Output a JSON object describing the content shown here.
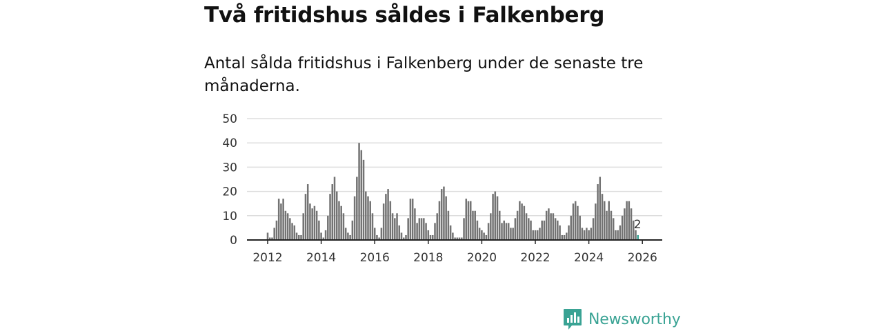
{
  "header": {
    "title": "Två fritidshus såldes i Falkenberg",
    "subtitle": "Antal sålda fritidshus i Falkenberg under de senaste tre månaderna."
  },
  "brand": {
    "name": "Newsworthy",
    "icon": "newsworthy-logo-icon",
    "color": "#3aa394"
  },
  "colors": {
    "bar": "#737373",
    "highlight": "#3aa394",
    "grid": "#dddddd",
    "axis": "#222222"
  },
  "chart_data": {
    "type": "bar",
    "start": "2012-01",
    "frequency": "monthly",
    "ylim": [
      0,
      50
    ],
    "yticks": [
      0,
      10,
      20,
      30,
      40,
      50
    ],
    "xticks": [
      "2012",
      "2014",
      "2016",
      "2018",
      "2020",
      "2022",
      "2024",
      "2026"
    ],
    "grid": true,
    "values": [
      3,
      1,
      1,
      5,
      8,
      17,
      15,
      17,
      12,
      11,
      9,
      7,
      6,
      3,
      2,
      2,
      11,
      19,
      23,
      15,
      13,
      14,
      12,
      8,
      3,
      1,
      4,
      10,
      19,
      23,
      26,
      20,
      16,
      14,
      11,
      5,
      3,
      2,
      8,
      18,
      26,
      40,
      37,
      33,
      20,
      18,
      16,
      11,
      5,
      2,
      1,
      5,
      15,
      19,
      21,
      16,
      11,
      9,
      11,
      6,
      3,
      1,
      2,
      9,
      17,
      17,
      13,
      7,
      9,
      9,
      9,
      7,
      4,
      2,
      2,
      7,
      11,
      16,
      21,
      22,
      18,
      12,
      6,
      3,
      1,
      1,
      1,
      1,
      9,
      17,
      16,
      16,
      12,
      12,
      8,
      5,
      4,
      3,
      2,
      7,
      11,
      19,
      20,
      18,
      12,
      7,
      8,
      7,
      7,
      5,
      5,
      9,
      12,
      16,
      15,
      14,
      11,
      9,
      8,
      4,
      4,
      4,
      5,
      8,
      8,
      12,
      13,
      11,
      11,
      9,
      8,
      6,
      2,
      2,
      3,
      6,
      10,
      15,
      16,
      14,
      10,
      5,
      4,
      5,
      4,
      5,
      9,
      15,
      23,
      26,
      19,
      16,
      12,
      16,
      12,
      9,
      4,
      4,
      6,
      10,
      13,
      16,
      16,
      13,
      8,
      4,
      2
    ],
    "highlight_last": true,
    "last_label": "2"
  }
}
